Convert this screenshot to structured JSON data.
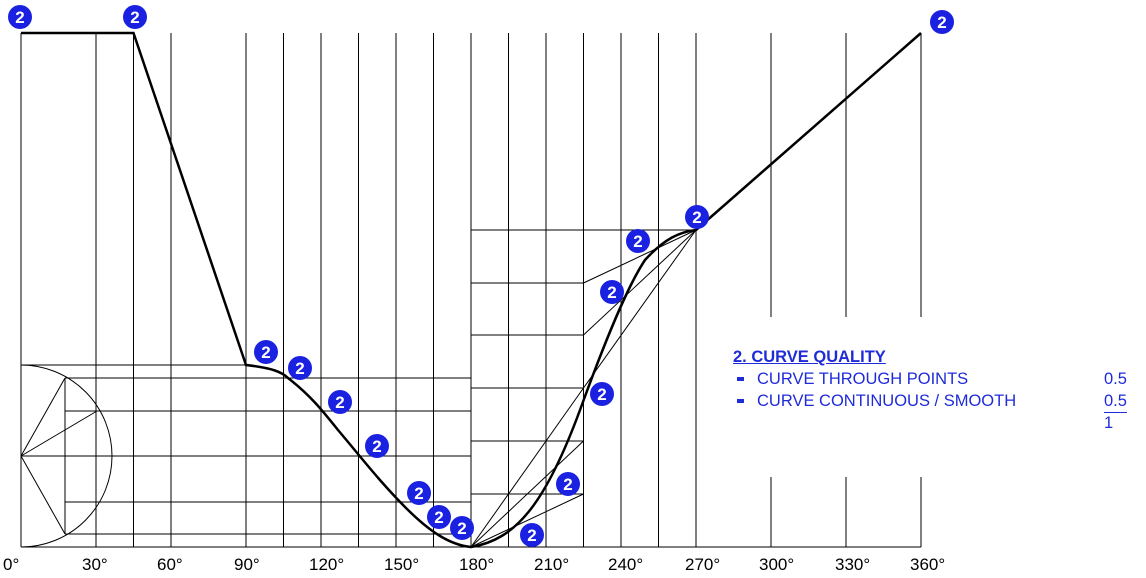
{
  "diagram": {
    "x_ticks": [
      "0°",
      "30°",
      "60°",
      "90°",
      "120°",
      "150°",
      "180°",
      "210°",
      "240°",
      "270°",
      "300°",
      "330°",
      "360°"
    ],
    "marker_label": "2",
    "marker_color": "#1a21e0",
    "line_color": "#000000"
  },
  "legend": {
    "title": "2. CURVE QUALITY",
    "items": [
      {
        "label": "CURVE THROUGH POINTS",
        "score": "0.5"
      },
      {
        "label": "CURVE CONTINUOUS / SMOOTH",
        "score": "0.5"
      }
    ],
    "total": "1",
    "color": "#1f2bd9"
  }
}
